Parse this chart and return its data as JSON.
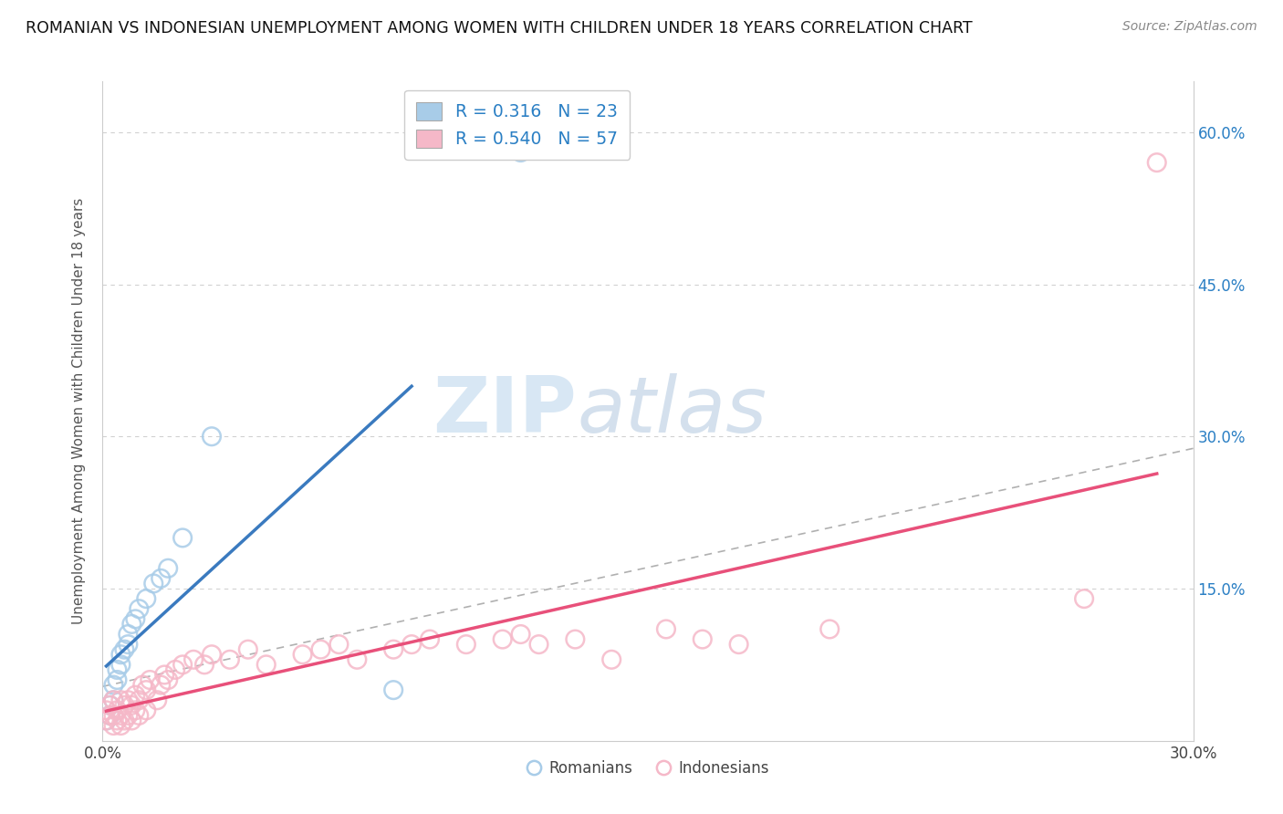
{
  "title": "ROMANIAN VS INDONESIAN UNEMPLOYMENT AMONG WOMEN WITH CHILDREN UNDER 18 YEARS CORRELATION CHART",
  "source": "Source: ZipAtlas.com",
  "ylabel": "Unemployment Among Women with Children Under 18 years",
  "xlim": [
    0.0,
    0.3
  ],
  "ylim": [
    0.0,
    0.65
  ],
  "romanian_color": "#a8cce8",
  "indonesian_color": "#f5b8c8",
  "romanian_line_color": "#3a7abf",
  "indonesian_line_color": "#e8507a",
  "trend_line_color": "#b0b0b0",
  "R_romanian": 0.316,
  "N_romanian": 23,
  "R_indonesian": 0.54,
  "N_indonesian": 57,
  "watermark_zip": "ZIP",
  "watermark_atlas": "atlas",
  "background_color": "#ffffff",
  "grid_color": "#cccccc",
  "rom_x": [
    0.001,
    0.002,
    0.002,
    0.003,
    0.003,
    0.004,
    0.004,
    0.005,
    0.005,
    0.006,
    0.007,
    0.007,
    0.008,
    0.009,
    0.01,
    0.012,
    0.014,
    0.016,
    0.018,
    0.022,
    0.03,
    0.08,
    0.115
  ],
  "rom_y": [
    0.02,
    0.025,
    0.035,
    0.04,
    0.055,
    0.06,
    0.07,
    0.075,
    0.085,
    0.09,
    0.095,
    0.105,
    0.115,
    0.12,
    0.13,
    0.14,
    0.155,
    0.16,
    0.17,
    0.2,
    0.3,
    0.05,
    0.58
  ],
  "ind_x": [
    0.001,
    0.001,
    0.002,
    0.002,
    0.003,
    0.003,
    0.003,
    0.004,
    0.004,
    0.005,
    0.005,
    0.005,
    0.006,
    0.006,
    0.007,
    0.007,
    0.008,
    0.008,
    0.009,
    0.009,
    0.01,
    0.01,
    0.011,
    0.012,
    0.012,
    0.013,
    0.015,
    0.016,
    0.017,
    0.018,
    0.02,
    0.022,
    0.025,
    0.028,
    0.03,
    0.035,
    0.04,
    0.045,
    0.055,
    0.06,
    0.065,
    0.07,
    0.08,
    0.085,
    0.09,
    0.1,
    0.11,
    0.115,
    0.12,
    0.13,
    0.14,
    0.155,
    0.165,
    0.175,
    0.2,
    0.27,
    0.29
  ],
  "ind_y": [
    0.02,
    0.03,
    0.025,
    0.035,
    0.015,
    0.025,
    0.04,
    0.02,
    0.03,
    0.015,
    0.025,
    0.04,
    0.02,
    0.035,
    0.025,
    0.04,
    0.02,
    0.035,
    0.03,
    0.045,
    0.025,
    0.04,
    0.055,
    0.03,
    0.05,
    0.06,
    0.04,
    0.055,
    0.065,
    0.06,
    0.07,
    0.075,
    0.08,
    0.075,
    0.085,
    0.08,
    0.09,
    0.075,
    0.085,
    0.09,
    0.095,
    0.08,
    0.09,
    0.095,
    0.1,
    0.095,
    0.1,
    0.105,
    0.095,
    0.1,
    0.08,
    0.11,
    0.1,
    0.095,
    0.11,
    0.14,
    0.57
  ]
}
